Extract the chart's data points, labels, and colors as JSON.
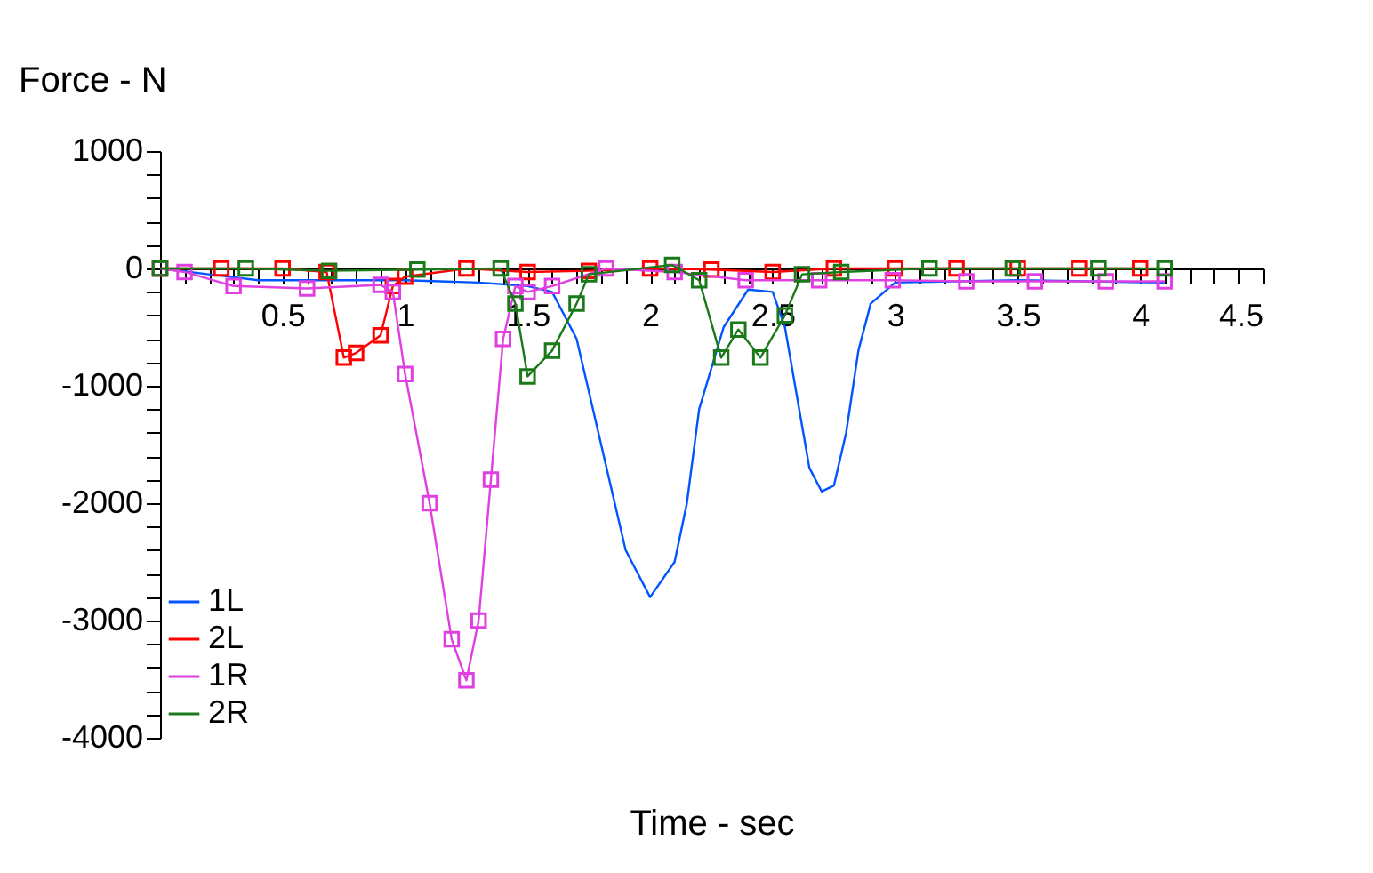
{
  "chart_data": {
    "type": "line",
    "xlabel": "Time - sec",
    "ylabel": "Force - N",
    "xlim": [
      0,
      4.5
    ],
    "ylim": [
      -4000,
      1000
    ],
    "xticks": [
      {
        "value": 0,
        "label": null
      },
      {
        "value": 0.1,
        "label": null
      },
      {
        "value": 0.2,
        "label": null
      },
      {
        "value": 0.3,
        "label": null
      },
      {
        "value": 0.4,
        "label": null
      },
      0.5,
      {
        "value": 0.6,
        "label": null
      },
      {
        "value": 0.7,
        "label": null
      },
      {
        "value": 0.8,
        "label": null
      },
      {
        "value": 0.9,
        "label": null
      },
      1,
      {
        "value": 1.1,
        "label": null
      },
      {
        "value": 1.2,
        "label": null
      },
      {
        "value": 1.3,
        "label": null
      },
      {
        "value": 1.4,
        "label": null
      },
      1.5,
      {
        "value": 1.6,
        "label": null
      },
      {
        "value": 1.7,
        "label": null
      },
      {
        "value": 1.8,
        "label": null
      },
      {
        "value": 1.9,
        "label": null
      },
      2,
      {
        "value": 2.1,
        "label": null
      },
      {
        "value": 2.2,
        "label": null
      },
      {
        "value": 2.3,
        "label": null
      },
      {
        "value": 2.4,
        "label": null
      },
      2.5,
      {
        "value": 2.6,
        "label": null
      },
      {
        "value": 2.7,
        "label": null
      },
      {
        "value": 2.8,
        "label": null
      },
      {
        "value": 2.9,
        "label": null
      },
      3,
      {
        "value": 3.1,
        "label": null
      },
      {
        "value": 3.2,
        "label": null
      },
      {
        "value": 3.3,
        "label": null
      },
      {
        "value": 3.4,
        "label": null
      },
      3.5,
      {
        "value": 3.6,
        "label": null
      },
      {
        "value": 3.7,
        "label": null
      },
      {
        "value": 3.8,
        "label": null
      },
      {
        "value": 3.9,
        "label": null
      },
      4,
      {
        "value": 4.1,
        "label": null
      },
      {
        "value": 4.2,
        "label": null
      },
      {
        "value": 4.3,
        "label": null
      },
      {
        "value": 4.4,
        "label": null
      },
      4.5
    ],
    "yticks": [
      1000,
      {
        "value": 800,
        "label": null
      },
      {
        "value": 600,
        "label": null
      },
      {
        "value": 400,
        "label": null
      },
      {
        "value": 200,
        "label": null
      },
      0,
      {
        "value": -200,
        "label": null
      },
      {
        "value": -400,
        "label": null
      },
      {
        "value": -600,
        "label": null
      },
      {
        "value": -800,
        "label": null
      },
      -1000,
      {
        "value": -1200,
        "label": null
      },
      {
        "value": -1400,
        "label": null
      },
      {
        "value": -1600,
        "label": null
      },
      {
        "value": -1800,
        "label": null
      },
      -2000,
      {
        "value": -2200,
        "label": null
      },
      {
        "value": -2400,
        "label": null
      },
      {
        "value": -2600,
        "label": null
      },
      {
        "value": -2800,
        "label": null
      },
      -3000,
      {
        "value": -3200,
        "label": null
      },
      {
        "value": -3400,
        "label": null
      },
      {
        "value": -3600,
        "label": null
      },
      {
        "value": -3800,
        "label": null
      },
      -4000
    ],
    "grid": false,
    "legend": "bottom left",
    "line_style": "solid",
    "series": [
      {
        "name": "1L",
        "color": "#0055ff",
        "marker": "none",
        "x": [
          0,
          0.2,
          0.4,
          1.0,
          1.3,
          1.5,
          1.6,
          1.7,
          1.8,
          1.9,
          2.0,
          2.1,
          2.15,
          2.2,
          2.3,
          2.4,
          2.5,
          2.55,
          2.6,
          2.65,
          2.7,
          2.75,
          2.8,
          2.85,
          2.9,
          3.0,
          3.5,
          4.1
        ],
        "values": [
          0,
          -50,
          -100,
          -100,
          -120,
          -150,
          -200,
          -600,
          -1500,
          -2400,
          -2800,
          -2500,
          -2000,
          -1200,
          -500,
          -180,
          -200,
          -500,
          -1100,
          -1700,
          -1900,
          -1850,
          -1400,
          -700,
          -300,
          -120,
          -100,
          -120
        ]
      },
      {
        "name": "2L",
        "color": "#ff0000",
        "marker": "square",
        "x": [
          0,
          0.25,
          0.5,
          0.68,
          0.75,
          0.8,
          0.9,
          0.95,
          1.0,
          1.25,
          1.5,
          1.75,
          2.0,
          2.25,
          2.5,
          2.75,
          3.0,
          3.25,
          3.5,
          3.75,
          4.0
        ],
        "values": [
          0,
          0,
          0,
          -30,
          -760,
          -720,
          -570,
          -150,
          -70,
          0,
          -30,
          -20,
          0,
          -10,
          -30,
          0,
          0,
          0,
          0,
          0,
          0
        ]
      },
      {
        "name": "1R",
        "color": "#e040e0",
        "marker": "square",
        "x": [
          0,
          0.1,
          0.3,
          0.6,
          0.9,
          0.95,
          1.0,
          1.1,
          1.19,
          1.25,
          1.3,
          1.35,
          1.4,
          1.45,
          1.5,
          1.6,
          1.82,
          2.1,
          2.39,
          2.69,
          2.99,
          3.29,
          3.57,
          3.86,
          4.1
        ],
        "values": [
          0,
          -30,
          -150,
          -170,
          -140,
          -200,
          -900,
          -2000,
          -3160,
          -3510,
          -3000,
          -1800,
          -600,
          -150,
          -200,
          -150,
          0,
          -30,
          -100,
          -100,
          -100,
          -110,
          -110,
          -110,
          -110
        ]
      },
      {
        "name": "2R",
        "color": "#1a7a1a",
        "marker": "square",
        "x": [
          0,
          0.35,
          0.69,
          1.05,
          1.39,
          1.45,
          1.5,
          1.6,
          1.7,
          1.75,
          2.09,
          2.2,
          2.29,
          2.36,
          2.45,
          2.55,
          2.62,
          2.78,
          3.14,
          3.48,
          3.83,
          4.1
        ],
        "values": [
          0,
          0,
          -20,
          -10,
          0,
          -300,
          -920,
          -700,
          -300,
          -50,
          30,
          -100,
          -760,
          -520,
          -760,
          -400,
          -50,
          -30,
          0,
          0,
          0,
          0
        ]
      }
    ]
  }
}
